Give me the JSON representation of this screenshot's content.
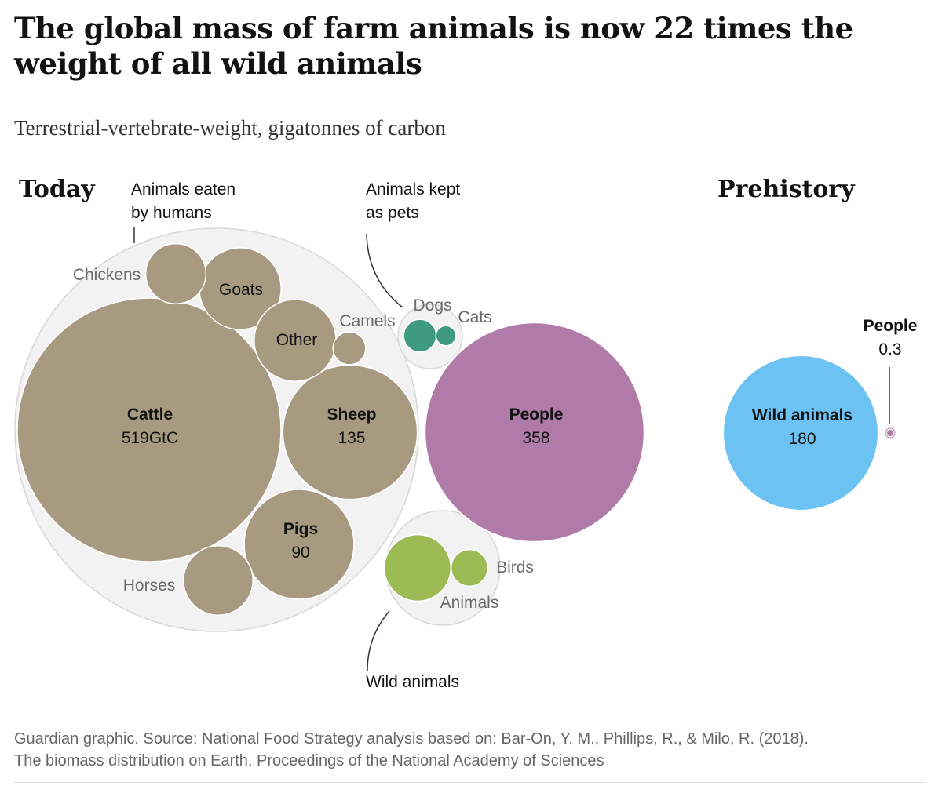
{
  "header": {
    "title": "The global mass of farm animals is now 22 times the weight of all wild animals",
    "subtitle": "Terrestrial-vertebrate-weight, gigatonnes of carbon"
  },
  "footer": {
    "source_line1": "Guardian graphic. Source: National Food Strategy analysis based on: Bar-On, Y. M., Phillips, R., & Milo, R. (2018).",
    "source_line2": "The biomass distribution on Earth, Proceedings of the National Academy of Sciences"
  },
  "colors": {
    "livestock": "#a89a80",
    "pets": "#3f9a82",
    "people": "#b07aa9",
    "wild_today": "#9cbb55",
    "wild_prehistory": "#6cc3f3",
    "group_fill": "#f2f2f2",
    "group_stroke": "#d8d8d8"
  },
  "chart_data": {
    "type": "bubble",
    "unit": "GtC",
    "groups": {
      "today": "Today",
      "prehistory": "Prehistory",
      "eaten": "Animals eaten by humans",
      "pets": "Animals kept as pets",
      "wild": "Wild animals"
    },
    "today": [
      {
        "name": "Cattle",
        "value": 519,
        "label": "519GtC",
        "group": "eaten"
      },
      {
        "name": "Sheep",
        "value": 135,
        "label": "135",
        "group": "eaten"
      },
      {
        "name": "Pigs",
        "value": 90,
        "label": "90",
        "group": "eaten"
      },
      {
        "name": "Goats",
        "value": 50,
        "group": "eaten"
      },
      {
        "name": "Horses",
        "value": 36,
        "group": "eaten"
      },
      {
        "name": "Other",
        "value": 50,
        "group": "eaten"
      },
      {
        "name": "Chickens",
        "value": 27,
        "group": "eaten"
      },
      {
        "name": "Camels",
        "value": 8,
        "group": "eaten"
      },
      {
        "name": "Dogs",
        "value": 8,
        "group": "pets"
      },
      {
        "name": "Cats",
        "value": 3,
        "group": "pets"
      },
      {
        "name": "People",
        "value": 358,
        "label": "358",
        "group": "people"
      },
      {
        "name": "Animals",
        "value": 33,
        "group": "wild"
      },
      {
        "name": "Birds",
        "value": 10,
        "group": "wild"
      }
    ],
    "prehistory": [
      {
        "name": "Wild animals",
        "value": 180,
        "label": "180"
      },
      {
        "name": "People",
        "value": 0.3,
        "label": "0.3"
      }
    ]
  }
}
